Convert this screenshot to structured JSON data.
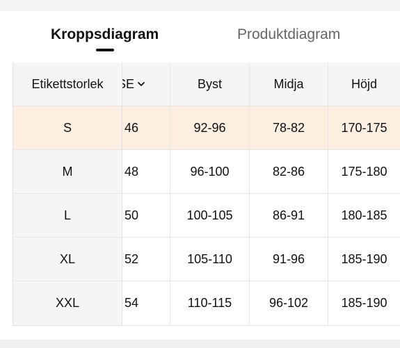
{
  "tabs": [
    {
      "label": "Kroppsdiagram",
      "active": true
    },
    {
      "label": "Produktdiagram",
      "active": false
    }
  ],
  "table": {
    "sticky_header": "Etikettstorlek",
    "headers": [
      "SE",
      "Byst",
      "Midja",
      "Höjd"
    ],
    "rows": [
      {
        "size": "S",
        "se": "46",
        "byst": "92-96",
        "midja": "78-82",
        "hojd": "170-175",
        "highlighted": true
      },
      {
        "size": "M",
        "se": "48",
        "byst": "96-100",
        "midja": "82-86",
        "hojd": "175-180",
        "highlighted": false
      },
      {
        "size": "L",
        "se": "50",
        "byst": "100-105",
        "midja": "86-91",
        "hojd": "180-185",
        "highlighted": false
      },
      {
        "size": "XL",
        "se": "52",
        "byst": "105-110",
        "midja": "91-96",
        "hojd": "185-190",
        "highlighted": false
      },
      {
        "size": "XXL",
        "se": "54",
        "byst": "110-115",
        "midja": "96-102",
        "hojd": "185-190",
        "highlighted": false
      }
    ]
  },
  "colors": {
    "highlight_row": "#fdeee2",
    "header_bg": "#f5f5f5",
    "active_tab": "#111111",
    "inactive_tab": "#666666"
  },
  "icons": {
    "se_dropdown": "chevron-down-icon"
  }
}
